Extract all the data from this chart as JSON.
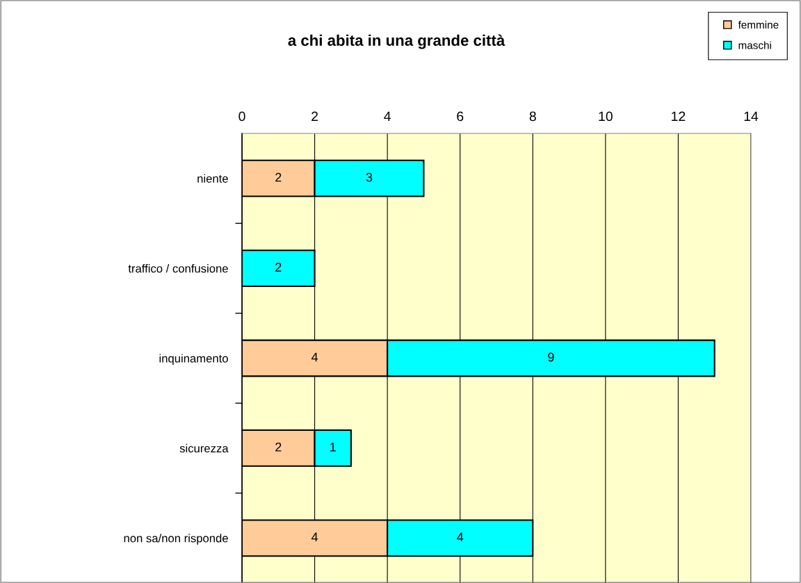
{
  "chart_data": {
    "type": "bar",
    "orientation": "horizontal",
    "stacked": true,
    "title": "a chi abita in una grande città",
    "categories": [
      "niente",
      "traffico / confusione",
      "inquinamento",
      "sicurezza",
      "non sa/non risponde"
    ],
    "series": [
      {
        "name": "femmine",
        "color": "#ffcc99",
        "values": [
          2,
          0,
          4,
          2,
          4
        ],
        "value_labels": [
          "2",
          null,
          "4",
          "2",
          "4"
        ]
      },
      {
        "name": "maschi",
        "color": "#00ffff",
        "values": [
          3,
          2,
          9,
          1,
          4
        ],
        "value_labels": [
          "3",
          "2",
          "9",
          "1",
          "4"
        ]
      }
    ],
    "xlim": [
      0,
      14
    ],
    "xticks": [
      0,
      2,
      4,
      6,
      8,
      10,
      12,
      14
    ],
    "grid": "x",
    "legend": "top right"
  }
}
